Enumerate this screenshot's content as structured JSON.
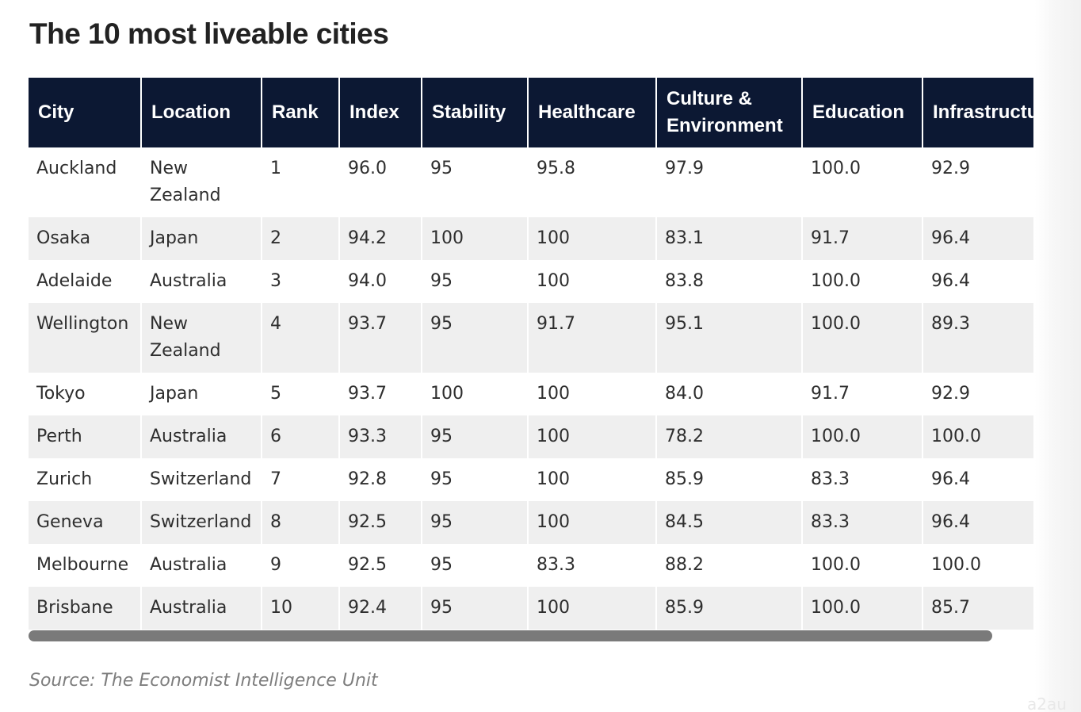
{
  "title": "The 10 most liveable cities",
  "table": {
    "headers": [
      "City",
      "Location",
      "Rank",
      "Index",
      "Stability",
      "Healthcare",
      "Culture & Environment",
      "Education",
      "Infrastructure"
    ],
    "rows": [
      [
        "Auckland",
        "New Zealand",
        "1",
        "96.0",
        "95",
        "95.8",
        "97.9",
        "100.0",
        "92.9"
      ],
      [
        "Osaka",
        "Japan",
        "2",
        "94.2",
        "100",
        "100",
        "83.1",
        "91.7",
        "96.4"
      ],
      [
        "Adelaide",
        "Australia",
        "3",
        "94.0",
        "95",
        "100",
        "83.8",
        "100.0",
        "96.4"
      ],
      [
        "Wellington",
        "New Zealand",
        "4",
        "93.7",
        "95",
        "91.7",
        "95.1",
        "100.0",
        "89.3"
      ],
      [
        "Tokyo",
        "Japan",
        "5",
        "93.7",
        "100",
        "100",
        "84.0",
        "91.7",
        "92.9"
      ],
      [
        "Perth",
        "Australia",
        "6",
        "93.3",
        "95",
        "100",
        "78.2",
        "100.0",
        "100.0"
      ],
      [
        "Zurich",
        "Switzerland",
        "7",
        "92.8",
        "95",
        "100",
        "85.9",
        "83.3",
        "96.4"
      ],
      [
        "Geneva",
        "Switzerland",
        "8",
        "92.5",
        "95",
        "100",
        "84.5",
        "83.3",
        "96.4"
      ],
      [
        "Melbourne",
        "Australia",
        "9",
        "92.5",
        "95",
        "83.3",
        "88.2",
        "100.0",
        "100.0"
      ],
      [
        "Brisbane",
        "Australia",
        "10",
        "92.4",
        "95",
        "100",
        "85.9",
        "100.0",
        "85.7"
      ]
    ]
  },
  "source": "Source: The Economist Intelligence Unit",
  "watermark": "a2au",
  "colors": {
    "header_bg": "#0c1833",
    "header_text": "#ffffff",
    "stripe": "#efefef",
    "scrollbar": "#7a7a7a"
  }
}
